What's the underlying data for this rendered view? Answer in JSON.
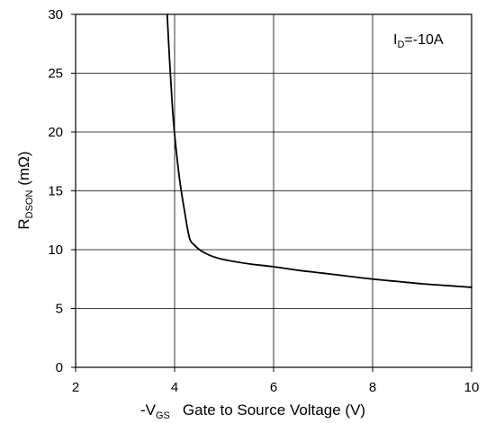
{
  "chart_data": {
    "type": "line",
    "xlim": [
      2,
      10
    ],
    "ylim": [
      0,
      30
    ],
    "x_ticks": [
      "2",
      "4",
      "6",
      "8",
      "10"
    ],
    "y_ticks": [
      "0",
      "5",
      "10",
      "15",
      "20",
      "25",
      "30"
    ],
    "grid": true,
    "xlabel": {
      "prefix": "-V",
      "subscript": "GS",
      "text": "Gate to Source Voltage (V)"
    },
    "ylabel": {
      "main": "R",
      "subscript": "DSON",
      "suffix": "(mΩ)"
    },
    "annotation": {
      "main": "I",
      "subscript": "D",
      "suffix": "=-10A"
    },
    "series": [
      {
        "color": "#000000",
        "x": [
          3.85,
          3.9,
          3.95,
          4.0,
          4.1,
          4.2,
          4.3,
          4.4,
          4.5,
          4.6,
          4.75,
          5.0,
          5.5,
          6.0,
          6.5,
          7.0,
          7.5,
          8.0,
          8.5,
          9.0,
          9.5,
          10.0
        ],
        "y": [
          30.0,
          26.0,
          22.5,
          19.8,
          16.0,
          13.3,
          11.0,
          10.4,
          10.0,
          9.75,
          9.45,
          9.15,
          8.8,
          8.55,
          8.25,
          8.0,
          7.75,
          7.5,
          7.3,
          7.1,
          6.95,
          6.8
        ]
      }
    ]
  }
}
